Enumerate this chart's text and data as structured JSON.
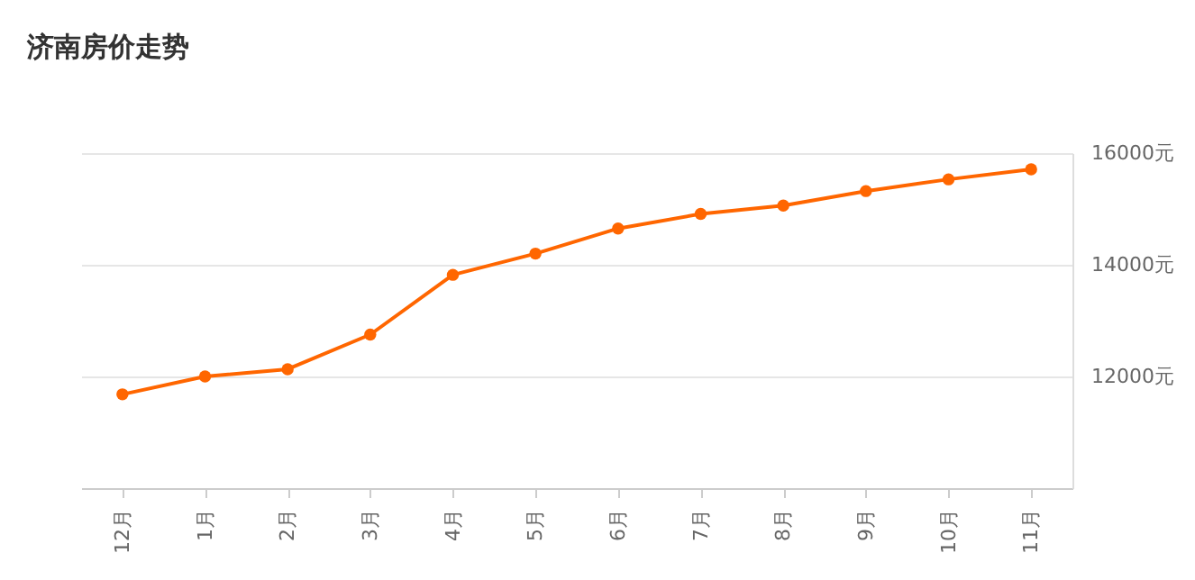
{
  "chart_data": {
    "type": "line",
    "title": "济南房价走势",
    "categories": [
      "12月",
      "1月",
      "2月",
      "3月",
      "4月",
      "5月",
      "6月",
      "7月",
      "8月",
      "9月",
      "10月",
      "11月"
    ],
    "series": [
      {
        "color": "#ff6600",
        "values": [
          11680,
          12000,
          12130,
          12750,
          13820,
          14200,
          14650,
          14910,
          15060,
          15320,
          15530,
          15710
        ]
      }
    ],
    "ylim": [
      10000,
      16000
    ],
    "yticks": [
      {
        "value": 12000,
        "label": "12000元"
      },
      {
        "value": 14000,
        "label": "14000元"
      },
      {
        "value": 16000,
        "label": "16000元"
      }
    ],
    "grid": "y",
    "marker": "circle",
    "line_style": "solid"
  }
}
